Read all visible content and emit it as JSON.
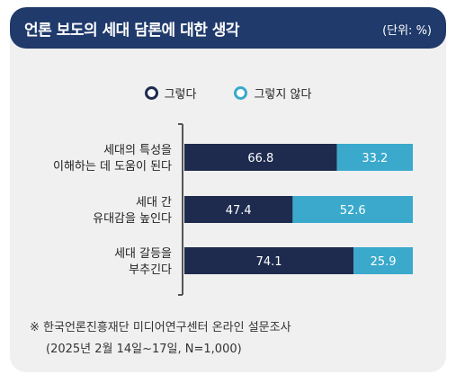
{
  "header": {
    "title": "언론 보도의 세대 담론에 대한 생각",
    "unit": "(단위: %)"
  },
  "colors": {
    "header_bg": "#1f3a6b",
    "series_agree": "#1e2b4f",
    "series_disagree": "#3aa9cc",
    "card_bg": "#f0f0f0"
  },
  "chart_data": {
    "type": "bar",
    "orientation": "horizontal",
    "stacked": true,
    "categories": [
      "세대의 특성을\n이해하는 데 도움이 된다",
      "세대 간\n유대감을 높인다",
      "세대 갈등을\n부추긴다"
    ],
    "series": [
      {
        "name": "그렇다",
        "values": [
          66.8,
          47.4,
          74.1
        ],
        "color": "#1e2b4f"
      },
      {
        "name": "그렇지 않다",
        "values": [
          33.2,
          52.6,
          25.9
        ],
        "color": "#3aa9cc"
      }
    ],
    "xlim": [
      0,
      100
    ],
    "legend": "top-center",
    "grid": false
  },
  "note": {
    "line1": "※ 한국언론진흥재단 미디어연구센터 온라인 설문조사",
    "line2": "(2025년 2월 14일~17일, N=1,000)"
  }
}
